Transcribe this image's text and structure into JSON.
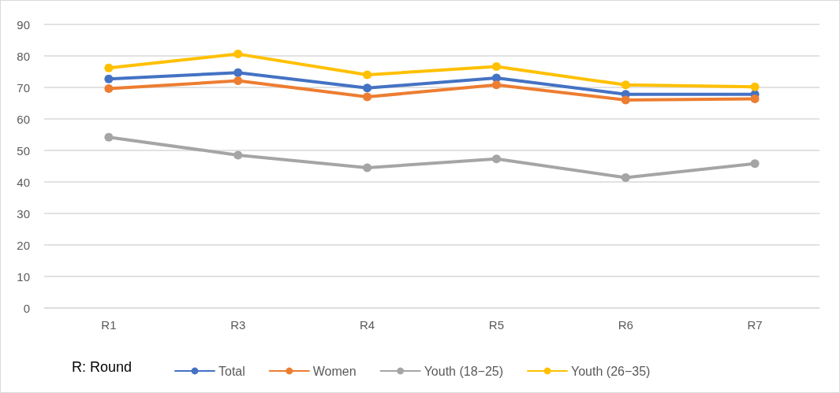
{
  "chart_data": {
    "type": "line",
    "categories": [
      "R1",
      "R3",
      "R4",
      "R5",
      "R6",
      "R7"
    ],
    "series": [
      {
        "name": "Total",
        "color": "#4472c4",
        "values": [
          72.7,
          74.7,
          69.8,
          73,
          67.8,
          67.8
        ]
      },
      {
        "name": "Women",
        "color": "#ed7d31",
        "values": [
          69.6,
          72.1,
          67,
          70.8,
          66,
          66.4
        ]
      },
      {
        "name": "Youth (18−25)",
        "color": "#a5a5a5",
        "values": [
          54.2,
          48.5,
          44.5,
          47.3,
          41.4,
          45.8
        ]
      },
      {
        "name": "Youth (26−35)",
        "color": "#ffc000",
        "values": [
          76.2,
          80.6,
          74,
          76.6,
          70.8,
          70.2
        ]
      }
    ],
    "ylim": [
      0,
      90
    ],
    "yticks": [
      0,
      10,
      20,
      30,
      40,
      50,
      60,
      70,
      80,
      90
    ],
    "grid": "y",
    "legend": "bottom",
    "marker": "circle",
    "line_style": "solid",
    "annotations": [
      "R: Round"
    ]
  }
}
